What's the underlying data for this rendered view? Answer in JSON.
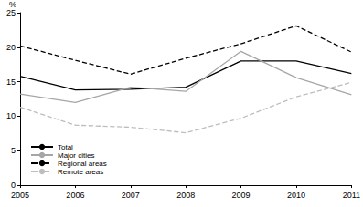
{
  "chart_data": {
    "type": "line",
    "y_label": "%",
    "categories": [
      "2005",
      "2006",
      "2007",
      "2008",
      "2009",
      "2010",
      "2011"
    ],
    "series": [
      {
        "name": "Total",
        "color": "#000000",
        "line_style": "solid",
        "values": [
          15.8,
          13.8,
          13.9,
          14.2,
          18.0,
          18.0,
          16.2
        ]
      },
      {
        "name": "Major cities",
        "color": "#a6a6a6",
        "line_style": "solid",
        "values": [
          13.2,
          12.0,
          14.2,
          13.6,
          19.4,
          15.6,
          13.1
        ]
      },
      {
        "name": "Regional areas",
        "color": "#000000",
        "line_style": "dashed",
        "values": [
          20.2,
          18.1,
          16.1,
          18.4,
          20.5,
          23.1,
          19.3
        ]
      },
      {
        "name": "Remote areas",
        "color": "#bdbdbd",
        "line_style": "dashed",
        "values": [
          11.3,
          8.7,
          8.4,
          7.6,
          9.7,
          12.8,
          14.9
        ]
      }
    ],
    "ylim": [
      0,
      25
    ],
    "yticks": [
      0,
      5,
      10,
      15,
      20,
      25
    ],
    "grid": false,
    "legend": "lower left"
  }
}
